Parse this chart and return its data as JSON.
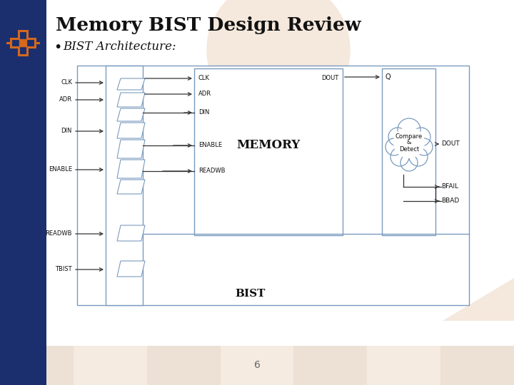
{
  "title": "Memory BIST Design Review",
  "bullet": "BIST Architecture:",
  "bg_color": "#ffffff",
  "left_bar_color": "#1b2f6e",
  "accent_color": "#d4681e",
  "diagram_line_color": "#7a9bbf",
  "page_number": "6",
  "arch_bg_circle_color": "#f5e8dc",
  "inputs": [
    "CLK",
    "ADR",
    "DIN",
    "ENABLE",
    "READWB",
    "TBIST"
  ],
  "memory_inputs": [
    "CLK",
    "ADR",
    "DIN",
    "ENABLE",
    "READWB"
  ],
  "memory_label": "MEMORY",
  "bist_label": "BIST",
  "compare_label_lines": [
    "Compare",
    "&",
    "Detect"
  ],
  "stripe_colors": [
    "#ede0d4",
    "#f5ebe0",
    "#ede0d4",
    "#f5ebe0",
    "#ede0d4",
    "#f5ebe0",
    "#ede0d4"
  ]
}
